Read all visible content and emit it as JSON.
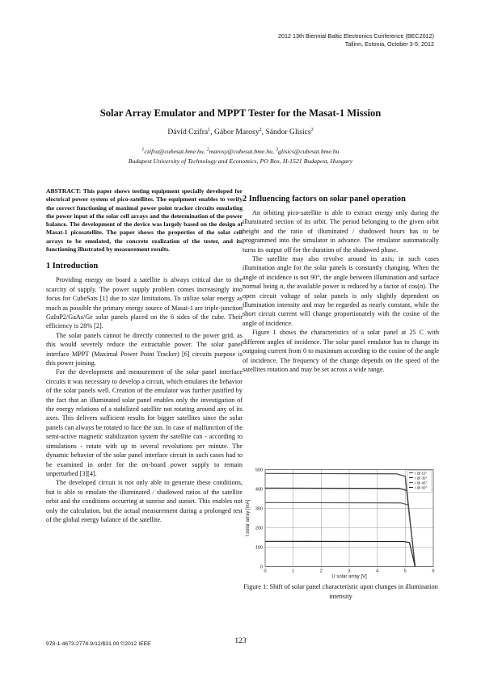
{
  "header": {
    "conference": "2012 13th Biennial Baltic Electronics Conference (BEC2012)",
    "location": "Tallinn, Estonia, October 3-5, 2012"
  },
  "title": "Solar Array Emulator and MPPT Tester for the Masat-1 Mission",
  "authors": [
    {
      "name": "Dávid Czifra",
      "sup": "1",
      "sep": ", "
    },
    {
      "name": "Gábor Marosy",
      "sup": "2",
      "sep": ", "
    },
    {
      "name": "Sándor Glisics",
      "sup": "3",
      "sep": ""
    }
  ],
  "emails": [
    {
      "sup": "1",
      "addr": "czifra@cubesat.bme.hu, "
    },
    {
      "sup": "2",
      "addr": "marosy@cubesat.bme.hu, "
    },
    {
      "sup": "3",
      "addr": "glisics@cubesat.bme.hu"
    }
  ],
  "affiliation": "Budapest University of Technology and Economics, PO Box, H-1521 Budapest, Hungary",
  "abstract": "ABSTRACT: This paper shows testing equipment specially developed for electrical power system of pico-satellites. The equipment enables to verify the correct functioning of maximal power point tracker circuits emulating the power input of the solar cell arrays and the determination of the power balance. The development of the device was largely based on the design of Masat-1 picosatellite. The paper shows the properties of the solar cell arrays to be emulated, the concrete realization of the tester, and its functioning illustrated by measurement results.",
  "section1": {
    "heading": "1  Introduction",
    "paragraphs": [
      "Providing energy on board a satellite is always critical due to the scarcity of supply. The power supply problem comes increasingly into focus for CubeSats [1] due to size limitations. To utilize solar energy as much as possible the primary energy source of Masat-1 are triple-junction GaInP2/GaAs/Ge solar panels placed on the 6 sides of the cube. Their efficiency is 28% [2].",
      "The solar panels cannot be directly connected to the power grid, as this would severely reduce the extractable power. The solar panel interface MPPT (Maximal Power Point Tracker) [6] circuits purpose is this power joining.",
      "For the development and measurement of the solar panel interface circuits it was necessary to develop a circuit, which emulates the behavior of the solar panels well. Creation of the emulator was further justified by the fact that an illuminated solar panel enables only the investigation of the energy relations of a stabilized satellite not rotating around any of its axes. This delivers sufficient results for bigger satellites since the solar panels can always be rotated to face the sun. In case of malfunction of the semi-active magnetic stabilization system the satellite can - according to simulations - rotate with up to several revolutions per minute. The dynamic behavior of the solar panel interface circuit in such cases had to be examined in order for the on-board power supply to remain unperturbed [3][4].",
      "The developed circuit is not only able to generate these conditions, but is able to emulate the illuminated / shadowed ratios of the satellite orbit and the conditions occurring at sunrise and sunset. This enables not only the calculation, but the actual measurement during a prolonged test of the global energy balance of the satellite."
    ]
  },
  "section2": {
    "heading": "2  Influencing factors on solar panel operation",
    "paragraphs": [
      "An orbiting pico-satellite is able to extract energy only during the illuminated section of its orbit. The period belonging to the given orbit height and the ratio of illuminated / shadowed hours has to be programmed into the simulator in advance. The emulator automatically turns its output off for the duration of the shadowed phase.",
      "The satellite may also revolve around its axis; in such cases illumination angle for the solar panels is constantly changing. When the angle of incidence is not 90°, the angle between illumination and surface normal being α, the available power is reduced by a factor of cos(α). The open circuit voltage of solar panels is only slightly dependent on illumination intensity and may be regarded as nearly constant, while the short circuit current will change proportionately with the cosine of the angle of incidence.",
      "Figure 1 shows the characteristics of a solar panel at 25 C with different angles of incidence. The solar panel emulator has to change its outgoing current from 0 to maximum according to the cosine of the angle of incidence. The frequency of the change depends on the speed of the satellites rotation and may be set across a wide range."
    ]
  },
  "figure_caption": "Figure 1: Shift of solar panel characteristic upon changes in illumination intensity",
  "chart_data": {
    "type": "line",
    "title": "",
    "xlabel": "U solar array [V]",
    "ylabel": "I solar array [mA]",
    "xlim": [
      0,
      6
    ],
    "ylim": [
      0,
      500
    ],
    "xticks": [
      "0",
      "1",
      "2",
      "3",
      "4",
      "5",
      "6"
    ],
    "yticks": [
      "0",
      "100",
      "200",
      "300",
      "400",
      "500"
    ],
    "grid": true,
    "legend_position": "top-right",
    "series": [
      {
        "name": "I @ 15°",
        "x": [
          0,
          4.7,
          5.0,
          5.35
        ],
        "y": [
          480,
          478,
          465,
          0
        ]
      },
      {
        "name": "I @ 30°",
        "x": [
          0,
          4.8,
          5.05,
          5.35
        ],
        "y": [
          405,
          403,
          392,
          0
        ]
      },
      {
        "name": "I @ 45°",
        "x": [
          0,
          4.85,
          5.1,
          5.35
        ],
        "y": [
          330,
          328,
          318,
          0
        ]
      },
      {
        "name": "I @ 60°",
        "x": [
          0,
          4.95,
          5.15,
          5.35
        ],
        "y": [
          130,
          129,
          124,
          0
        ]
      }
    ]
  },
  "footer": {
    "isbn": "978-1-4673-2774-9/12/$31.00 ©2012 IEEE",
    "page_number": "123"
  }
}
